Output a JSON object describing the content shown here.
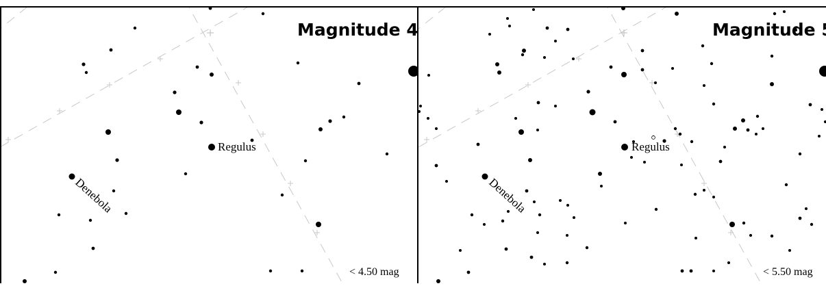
{
  "panels": [
    {
      "title": "Magnitude 4",
      "limit_label": "< 4.50 mag",
      "labels": [
        {
          "text": "Regulus"
        },
        {
          "text": "Denebola"
        }
      ]
    },
    {
      "title": "Magnitude 5",
      "limit_label": "< 5.50 mag",
      "labels": [
        {
          "text": "Regulus"
        },
        {
          "text": "Denebola"
        }
      ]
    }
  ],
  "colors": {
    "background": "#ffffff",
    "stars": "#000000",
    "grid": "#c8c8c8",
    "frame": "#000000"
  }
}
